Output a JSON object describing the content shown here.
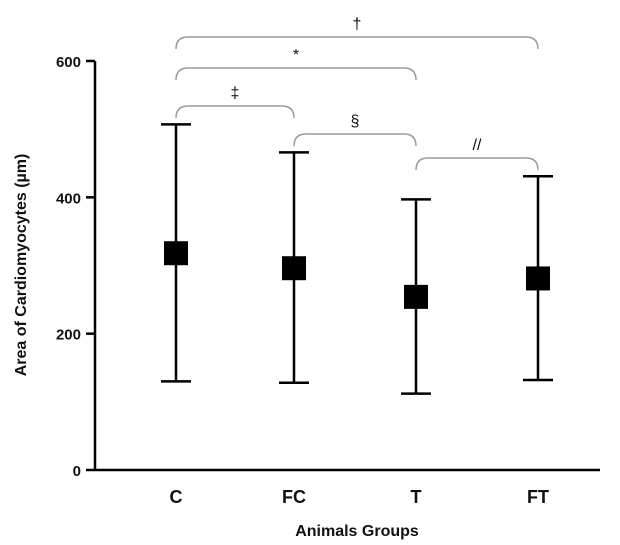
{
  "chart_data": {
    "type": "scatter",
    "subtype": "mean-with-error-bars",
    "title": "",
    "xlabel": "Animals Groups",
    "ylabel": "Area of Cardiomyocytes (µm)",
    "ylim": [
      0,
      600
    ],
    "yticks": [
      0,
      200,
      400,
      600
    ],
    "categories": [
      "C",
      "FC",
      "T",
      "FT"
    ],
    "series": [
      {
        "values": [
          318,
          296,
          254,
          281
        ],
        "lower": [
          130,
          128,
          112,
          132
        ],
        "upper": [
          507,
          466,
          397,
          431
        ],
        "color": "#000000",
        "marker": "square"
      }
    ],
    "grid": false,
    "legend": "none",
    "significance": [
      {
        "from": "C",
        "to": "FT",
        "symbol": "†",
        "level": 1
      },
      {
        "from": "C",
        "to": "T",
        "symbol": "*",
        "level": 2
      },
      {
        "from": "C",
        "to": "FC",
        "symbol": "‡",
        "level": 3
      },
      {
        "from": "FC",
        "to": "T",
        "symbol": "§",
        "level": 4
      },
      {
        "from": "T",
        "to": "FT",
        "symbol": "//",
        "level": 5
      }
    ]
  }
}
